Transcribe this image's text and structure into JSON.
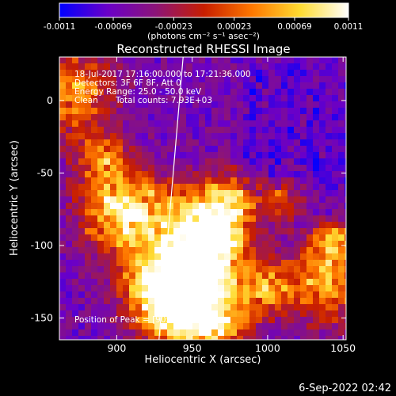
{
  "chart_data": {
    "type": "heatmap",
    "title": "Reconstructed RHESSI Image",
    "xlabel": "Heliocentric X (arcsec)",
    "ylabel": "Heliocentric Y (arcsec)",
    "xlim": [
      862,
      1052
    ],
    "ylim": [
      -165,
      30
    ],
    "x_ticks": [
      900,
      950,
      1000,
      1050
    ],
    "y_ticks": [
      0,
      -50,
      -100,
      -150
    ],
    "colorbar": {
      "range": [
        -0.0011,
        0.0011
      ],
      "tick_labels": [
        "-0.0011",
        "-0.00069",
        "-0.00023",
        "0.00023",
        "0.00069",
        "0.0011"
      ],
      "unit_label": "(photons cm⁻² s⁻¹ asec⁻²)",
      "colormap": [
        "#0000ff",
        "#6a00c8",
        "#8c1478",
        "#c81e00",
        "#ff7800",
        "#ffdc32",
        "#ffffff"
      ]
    },
    "annotations": {
      "time": "18-Jul-2017 17:16:00.000 to 17:21:36.000",
      "detectors": "Detectors: 3F 6F 8F, Att 0",
      "energy": "Energy Range: 25.0 - 50.0 keV",
      "method": "Clean",
      "counts": "Total counts: 7.93E+03",
      "peak": "Position of Peak = [905,-77]"
    },
    "limb_line": {
      "x": [
        944,
        928
      ],
      "y": [
        30,
        -165
      ]
    },
    "bright_regions": [
      {
        "x": 905,
        "y": -77,
        "rel": 1.0
      },
      {
        "x": 955,
        "y": -90,
        "rel": 0.9
      },
      {
        "x": 940,
        "y": -145,
        "rel": 0.95
      },
      {
        "x": 870,
        "y": 5,
        "rel": 0.7
      },
      {
        "x": 1040,
        "y": -125,
        "rel": 0.75
      }
    ]
  },
  "footer": {
    "date": "6-Sep-2022 02:42"
  }
}
